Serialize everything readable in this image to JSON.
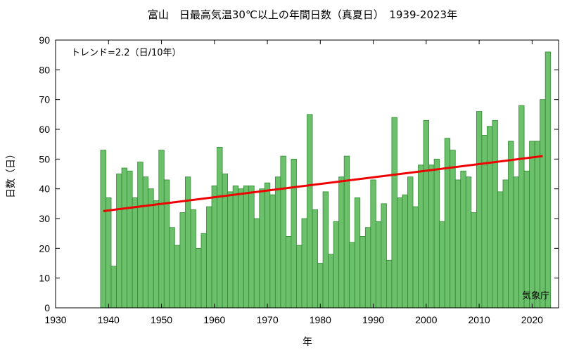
{
  "chart_data": {
    "type": "bar",
    "title": "富山　日最高気温30℃以上の年間日数（真夏日）　1939-2023年",
    "xlabel": "年",
    "ylabel": "日数（日）",
    "xlim": [
      1930,
      2025
    ],
    "ylim": [
      0,
      90
    ],
    "x_ticks": [
      "1930",
      "1940",
      "1950",
      "1960",
      "1970",
      "1980",
      "1990",
      "2000",
      "2010",
      "2020"
    ],
    "y_ticks": [
      "0",
      "10",
      "20",
      "30",
      "40",
      "50",
      "60",
      "70",
      "80",
      "90"
    ],
    "grid": false,
    "bar_color": "#6cc06c",
    "bar_edge_color": "#2f8a2f",
    "years": [
      1939,
      1940,
      1941,
      1942,
      1943,
      1944,
      1945,
      1946,
      1947,
      1948,
      1949,
      1950,
      1951,
      1952,
      1953,
      1954,
      1955,
      1956,
      1957,
      1958,
      1959,
      1960,
      1961,
      1962,
      1963,
      1964,
      1965,
      1966,
      1967,
      1968,
      1969,
      1970,
      1971,
      1972,
      1973,
      1974,
      1975,
      1976,
      1977,
      1978,
      1979,
      1980,
      1981,
      1982,
      1983,
      1984,
      1985,
      1986,
      1987,
      1988,
      1989,
      1990,
      1991,
      1992,
      1993,
      1994,
      1995,
      1996,
      1997,
      1998,
      1999,
      2000,
      2001,
      2002,
      2003,
      2004,
      2005,
      2006,
      2007,
      2008,
      2009,
      2010,
      2011,
      2012,
      2013,
      2014,
      2015,
      2016,
      2017,
      2018,
      2019,
      2020,
      2021,
      2022,
      2023
    ],
    "values": [
      53,
      37,
      14,
      45,
      47,
      46,
      37,
      49,
      44,
      40,
      36,
      53,
      43,
      27,
      21,
      32,
      44,
      33,
      20,
      25,
      34,
      41,
      54,
      45,
      39,
      41,
      40,
      41,
      41,
      30,
      40,
      42,
      38,
      44,
      51,
      24,
      50,
      21,
      30,
      65,
      33,
      15,
      39,
      18,
      29,
      44,
      51,
      22,
      37,
      24,
      27,
      43,
      29,
      35,
      16,
      64,
      37,
      38,
      44,
      34,
      48,
      63,
      48,
      50,
      29,
      57,
      53,
      43,
      46,
      44,
      32,
      66,
      58,
      61,
      63,
      39,
      43,
      56,
      44,
      68,
      46,
      56,
      56,
      70,
      86
    ],
    "trend": {
      "label": "トレンド=2.2（日/10年）",
      "start": [
        1939,
        32.5
      ],
      "end": [
        2022,
        51
      ],
      "color": "#ee0000"
    },
    "source": "気象庁"
  }
}
